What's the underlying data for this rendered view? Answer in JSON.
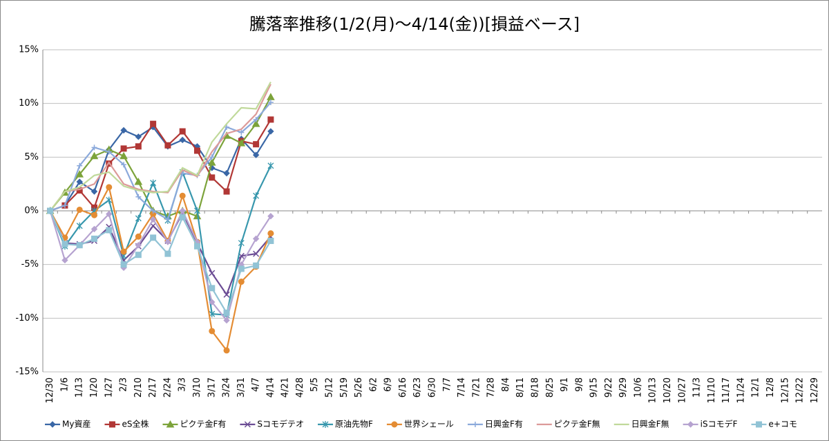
{
  "chart_data": {
    "type": "line",
    "title": "騰落率推移(1/2(月)～4/14(金))[損益ベース]",
    "categories": [
      "12/30",
      "1/6",
      "1/13",
      "1/20",
      "1/27",
      "2/3",
      "2/10",
      "2/17",
      "2/24",
      "3/3",
      "3/10",
      "3/17",
      "3/24",
      "3/31",
      "4/7",
      "4/14",
      "4/21",
      "4/28",
      "5/5",
      "5/12",
      "5/19",
      "5/26",
      "6/2",
      "6/9",
      "6/16",
      "6/23",
      "6/30",
      "7/7",
      "7/14",
      "7/21",
      "7/28",
      "8/4",
      "8/11",
      "8/18",
      "8/25",
      "9/1",
      "9/8",
      "9/15",
      "9/22",
      "9/29",
      "10/6",
      "10/13",
      "10/20",
      "10/27",
      "11/3",
      "11/10",
      "11/17",
      "11/24",
      "12/1",
      "12/8",
      "12/15",
      "12/22",
      "12/29"
    ],
    "ylim": [
      -15,
      15
    ],
    "yticks": [
      {
        "value": -15,
        "label": "-15%"
      },
      {
        "value": -10,
        "label": "-10%"
      },
      {
        "value": -5,
        "label": "-5%"
      },
      {
        "value": 0,
        "label": "0%"
      },
      {
        "value": 5,
        "label": "5%"
      },
      {
        "value": 10,
        "label": "10%"
      },
      {
        "value": 15,
        "label": "15%"
      }
    ],
    "grid": true,
    "legend": "bottom",
    "series": [
      {
        "name": "My資産",
        "color": "#3a67a6",
        "marker": "diamond",
        "values": [
          0,
          0.5,
          2.7,
          1.8,
          5.7,
          7.5,
          6.9,
          7.8,
          6.0,
          6.6,
          6.0,
          4.0,
          3.5,
          6.7,
          5.2,
          7.4,
          null,
          null,
          null,
          null,
          null,
          null,
          null,
          null,
          null,
          null,
          null,
          null,
          null,
          null,
          null,
          null,
          null,
          null,
          null,
          null,
          null,
          null,
          null,
          null,
          null,
          null,
          null,
          null,
          null,
          null,
          null,
          null,
          null,
          null,
          null,
          null,
          null
        ]
      },
      {
        "name": "eS全株",
        "color": "#b13735",
        "marker": "square",
        "values": [
          0,
          0.5,
          1.9,
          0.3,
          4.4,
          5.8,
          6.0,
          8.1,
          6.1,
          7.4,
          5.6,
          3.1,
          1.8,
          6.5,
          6.2,
          8.5,
          null,
          null,
          null,
          null,
          null,
          null,
          null,
          null,
          null,
          null,
          null,
          null,
          null,
          null,
          null,
          null,
          null,
          null,
          null,
          null,
          null,
          null,
          null,
          null,
          null,
          null,
          null,
          null,
          null,
          null,
          null,
          null,
          null,
          null,
          null,
          null,
          null
        ]
      },
      {
        "name": "ピクテ金F有",
        "color": "#7ca33a",
        "marker": "triangle",
        "values": [
          0,
          1.7,
          3.4,
          5.1,
          5.7,
          5.1,
          2.7,
          0.0,
          -0.5,
          0.0,
          -0.5,
          4.5,
          7.0,
          6.3,
          8.1,
          10.6,
          null,
          null,
          null,
          null,
          null,
          null,
          null,
          null,
          null,
          null,
          null,
          null,
          null,
          null,
          null,
          null,
          null,
          null,
          null,
          null,
          null,
          null,
          null,
          null,
          null,
          null,
          null,
          null,
          null,
          null,
          null,
          null,
          null,
          null,
          null,
          null,
          null
        ]
      },
      {
        "name": "Sコモデテオ",
        "color": "#6b4c94",
        "marker": "x",
        "values": [
          0,
          -3.0,
          -3.1,
          -2.8,
          -1.5,
          -4.6,
          -3.3,
          -1.4,
          -2.8,
          -0.2,
          -3.0,
          -5.8,
          -7.8,
          -4.2,
          -4.0,
          -2.4,
          null,
          null,
          null,
          null,
          null,
          null,
          null,
          null,
          null,
          null,
          null,
          null,
          null,
          null,
          null,
          null,
          null,
          null,
          null,
          null,
          null,
          null,
          null,
          null,
          null,
          null,
          null,
          null,
          null,
          null,
          null,
          null,
          null,
          null,
          null,
          null,
          null
        ]
      },
      {
        "name": "原油先物F",
        "color": "#3797ad",
        "marker": "star",
        "values": [
          0,
          -3.3,
          -1.4,
          0.0,
          1.0,
          -4.2,
          -0.7,
          2.6,
          -0.9,
          3.6,
          0.0,
          -9.6,
          -9.7,
          -3.0,
          1.4,
          4.2,
          null,
          null,
          null,
          null,
          null,
          null,
          null,
          null,
          null,
          null,
          null,
          null,
          null,
          null,
          null,
          null,
          null,
          null,
          null,
          null,
          null,
          null,
          null,
          null,
          null,
          null,
          null,
          null,
          null,
          null,
          null,
          null,
          null,
          null,
          null,
          null,
          null
        ]
      },
      {
        "name": "世界シェール",
        "color": "#e48c33",
        "marker": "circle",
        "values": [
          0,
          -2.5,
          0.1,
          -0.4,
          2.2,
          -3.8,
          -2.4,
          -0.3,
          -2.8,
          1.4,
          -2.9,
          -11.2,
          -13.0,
          -6.6,
          -5.2,
          -2.1,
          null,
          null,
          null,
          null,
          null,
          null,
          null,
          null,
          null,
          null,
          null,
          null,
          null,
          null,
          null,
          null,
          null,
          null,
          null,
          null,
          null,
          null,
          null,
          null,
          null,
          null,
          null,
          null,
          null,
          null,
          null,
          null,
          null,
          null,
          null,
          null,
          null
        ]
      },
      {
        "name": "日興金F有",
        "color": "#8ba9db",
        "marker": "plus",
        "values": [
          0,
          0.5,
          4.2,
          5.9,
          5.5,
          4.3,
          1.3,
          0.0,
          -0.8,
          3.5,
          3.3,
          5.0,
          7.8,
          7.3,
          8.5,
          10.1,
          null,
          null,
          null,
          null,
          null,
          null,
          null,
          null,
          null,
          null,
          null,
          null,
          null,
          null,
          null,
          null,
          null,
          null,
          null,
          null,
          null,
          null,
          null,
          null,
          null,
          null,
          null,
          null,
          null,
          null,
          null,
          null,
          null,
          null,
          null,
          null,
          null
        ]
      },
      {
        "name": "ピクテ金F無",
        "color": "#dc9a99",
        "marker": "none",
        "values": [
          0,
          1.8,
          2.0,
          2.5,
          4.5,
          2.5,
          2.0,
          1.8,
          1.7,
          3.8,
          3.2,
          5.5,
          7.2,
          7.6,
          9.0,
          11.8,
          null,
          null,
          null,
          null,
          null,
          null,
          null,
          null,
          null,
          null,
          null,
          null,
          null,
          null,
          null,
          null,
          null,
          null,
          null,
          null,
          null,
          null,
          null,
          null,
          null,
          null,
          null,
          null,
          null,
          null,
          null,
          null,
          null,
          null,
          null,
          null,
          null
        ]
      },
      {
        "name": "日興金F無",
        "color": "#c0d99a",
        "marker": "none",
        "values": [
          0,
          1.8,
          2.2,
          3.3,
          3.6,
          2.3,
          1.9,
          1.7,
          1.8,
          4.0,
          3.3,
          6.4,
          8.1,
          9.6,
          9.5,
          12.0,
          null,
          null,
          null,
          null,
          null,
          null,
          null,
          null,
          null,
          null,
          null,
          null,
          null,
          null,
          null,
          null,
          null,
          null,
          null,
          null,
          null,
          null,
          null,
          null,
          null,
          null,
          null,
          null,
          null,
          null,
          null,
          null,
          null,
          null,
          null,
          null,
          null
        ]
      },
      {
        "name": "iSコモデF",
        "color": "#b6a3d0",
        "marker": "diamond",
        "values": [
          0,
          -4.6,
          -3.2,
          -1.7,
          -0.3,
          -5.3,
          -3.2,
          -0.8,
          -2.9,
          0.0,
          -2.9,
          -8.5,
          -10.2,
          -5.0,
          -2.6,
          -0.5,
          null,
          null,
          null,
          null,
          null,
          null,
          null,
          null,
          null,
          null,
          null,
          null,
          null,
          null,
          null,
          null,
          null,
          null,
          null,
          null,
          null,
          null,
          null,
          null,
          null,
          null,
          null,
          null,
          null,
          null,
          null,
          null,
          null,
          null,
          null,
          null,
          null
        ]
      },
      {
        "name": "e+コモ",
        "color": "#91c3d5",
        "marker": "square",
        "values": [
          0,
          -3.1,
          -3.2,
          -2.6,
          -1.8,
          -5.0,
          -4.1,
          -2.5,
          -4.0,
          -0.6,
          -3.3,
          -7.2,
          -9.5,
          -5.4,
          -5.1,
          -2.8,
          null,
          null,
          null,
          null,
          null,
          null,
          null,
          null,
          null,
          null,
          null,
          null,
          null,
          null,
          null,
          null,
          null,
          null,
          null,
          null,
          null,
          null,
          null,
          null,
          null,
          null,
          null,
          null,
          null,
          null,
          null,
          null,
          null,
          null,
          null,
          null,
          null
        ]
      }
    ]
  }
}
